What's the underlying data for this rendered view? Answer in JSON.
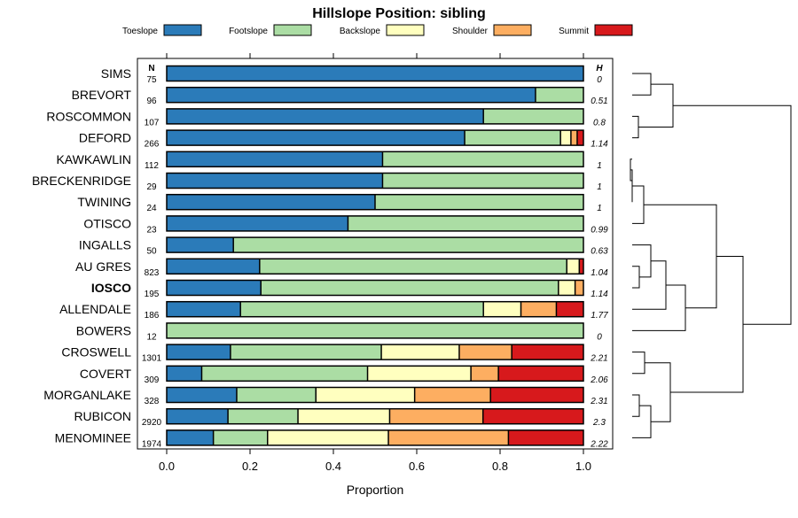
{
  "chart_data": {
    "type": "bar",
    "title": "Hillslope Position: sibling",
    "xlabel": "Proportion",
    "xlim": [
      0,
      1
    ],
    "xticks": [
      0.0,
      0.2,
      0.4,
      0.6,
      0.8,
      1.0
    ],
    "xtick_labels": [
      "0.0",
      "0.2",
      "0.4",
      "0.6",
      "0.8",
      "1.0"
    ],
    "n_header": "N",
    "h_header": "H",
    "highlight": "IOSCO",
    "legend": [
      {
        "name": "Toeslope",
        "color": "#2b7bb9"
      },
      {
        "name": "Footslope",
        "color": "#abdda4"
      },
      {
        "name": "Backslope",
        "color": "#ffffbf"
      },
      {
        "name": "Shoulder",
        "color": "#fdae61"
      },
      {
        "name": "Summit",
        "color": "#d7191c"
      }
    ],
    "series": [
      {
        "name": "SIMS",
        "n": "75",
        "h": "0",
        "values": [
          1.0,
          0,
          0,
          0,
          0
        ]
      },
      {
        "name": "BREVORT",
        "n": "96",
        "h": "0.51",
        "values": [
          0.885,
          0.115,
          0,
          0,
          0
        ]
      },
      {
        "name": "ROSCOMMON",
        "n": "107",
        "h": "0.8",
        "values": [
          0.76,
          0.24,
          0,
          0,
          0
        ]
      },
      {
        "name": "DEFORD",
        "n": "266",
        "h": "1.14",
        "values": [
          0.715,
          0.23,
          0.025,
          0.015,
          0.015
        ]
      },
      {
        "name": "KAWKAWLIN",
        "n": "112",
        "h": "1",
        "values": [
          0.518,
          0.482,
          0,
          0,
          0
        ]
      },
      {
        "name": "BRECKENRIDGE",
        "n": "29",
        "h": "1",
        "values": [
          0.518,
          0.482,
          0,
          0,
          0
        ]
      },
      {
        "name": "TWINING",
        "n": "24",
        "h": "1",
        "values": [
          0.5,
          0.5,
          0,
          0,
          0
        ]
      },
      {
        "name": "OTISCO",
        "n": "23",
        "h": "0.99",
        "values": [
          0.435,
          0.565,
          0,
          0,
          0
        ]
      },
      {
        "name": "INGALLS",
        "n": "50",
        "h": "0.63",
        "values": [
          0.16,
          0.84,
          0,
          0,
          0
        ]
      },
      {
        "name": "AU GRES",
        "n": "823",
        "h": "1.04",
        "values": [
          0.223,
          0.737,
          0.03,
          0,
          0.01
        ]
      },
      {
        "name": "IOSCO",
        "n": "195",
        "h": "1.14",
        "values": [
          0.226,
          0.714,
          0.04,
          0.02,
          0
        ]
      },
      {
        "name": "ALLENDALE",
        "n": "186",
        "h": "1.77",
        "values": [
          0.177,
          0.583,
          0.09,
          0.085,
          0.065
        ]
      },
      {
        "name": "BOWERS",
        "n": "12",
        "h": "0",
        "values": [
          0,
          1.0,
          0,
          0,
          0
        ]
      },
      {
        "name": "CROSWELL",
        "n": "1301",
        "h": "2.21",
        "values": [
          0.153,
          0.362,
          0.187,
          0.126,
          0.172
        ]
      },
      {
        "name": "COVERT",
        "n": "309",
        "h": "2.06",
        "values": [
          0.084,
          0.398,
          0.248,
          0.066,
          0.204
        ]
      },
      {
        "name": "MORGANLAKE",
        "n": "328",
        "h": "2.31",
        "values": [
          0.168,
          0.19,
          0.237,
          0.182,
          0.223
        ]
      },
      {
        "name": "RUBICON",
        "n": "2920",
        "h": "2.3",
        "values": [
          0.147,
          0.168,
          0.22,
          0.224,
          0.241
        ]
      },
      {
        "name": "MENOMINEE",
        "n": "1974",
        "h": "2.22",
        "values": [
          0.112,
          0.13,
          0.29,
          0.288,
          0.18
        ]
      }
    ]
  }
}
